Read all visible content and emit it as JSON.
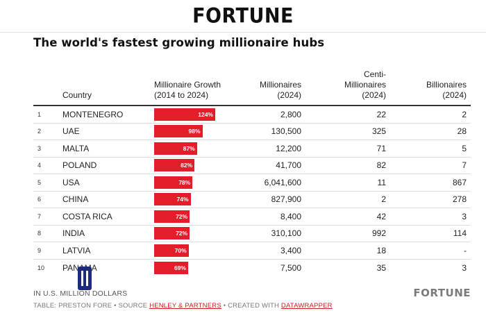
{
  "masthead": {
    "logo": "FORTUNE"
  },
  "title": "The world's fastest growing millionaire hubs",
  "headers": {
    "country": "Country",
    "growth": "Millionaire Growth (2014 to 2024)",
    "millionaires": "Millionaires (2024)",
    "centi": "Centi-Millionaires (2024)",
    "billionaires": "Billionaires (2024)"
  },
  "rows": [
    {
      "rank": "1",
      "country": "MONTENEGRO",
      "growth": "124%",
      "growth_value": 124,
      "millionaires": "2,800",
      "centi": "22",
      "billionaires": "2"
    },
    {
      "rank": "2",
      "country": "UAE",
      "growth": "98%",
      "growth_value": 98,
      "millionaires": "130,500",
      "centi": "325",
      "billionaires": "28"
    },
    {
      "rank": "3",
      "country": "MALTA",
      "growth": "87%",
      "growth_value": 87,
      "millionaires": "12,200",
      "centi": "71",
      "billionaires": "5"
    },
    {
      "rank": "4",
      "country": "POLAND",
      "growth": "82%",
      "growth_value": 82,
      "millionaires": "41,700",
      "centi": "82",
      "billionaires": "7"
    },
    {
      "rank": "5",
      "country": "USA",
      "growth": "78%",
      "growth_value": 78,
      "millionaires": "6,041,600",
      "centi": "11",
      "billionaires": "867"
    },
    {
      "rank": "6",
      "country": "CHINA",
      "growth": "74%",
      "growth_value": 74,
      "millionaires": "827,900",
      "centi": "2",
      "billionaires": "278"
    },
    {
      "rank": "7",
      "country": "COSTA RICA",
      "growth": "72%",
      "growth_value": 72,
      "millionaires": "8,400",
      "centi": "42",
      "billionaires": "3"
    },
    {
      "rank": "8",
      "country": "INDIA",
      "growth": "72%",
      "growth_value": 72,
      "millionaires": "310,100",
      "centi": "992",
      "billionaires": "114"
    },
    {
      "rank": "9",
      "country": "LATVIA",
      "growth": "70%",
      "growth_value": 70,
      "millionaires": "3,400",
      "centi": "18",
      "billionaires": "-"
    },
    {
      "rank": "10",
      "country": "PANAMA",
      "growth": "69%",
      "growth_value": 69,
      "millionaires": "7,500",
      "centi": "35",
      "billionaires": "3"
    }
  ],
  "footer": {
    "units_note": "IN U.S. MILLION DOLLARS",
    "credit_prefix": "TABLE: PRESTON FORE • SOURCE ",
    "source_link": "HENLEY & PARTNERS",
    "credit_mid": " • CREATED WITH ",
    "tool_link": "DATAWRAPPER",
    "logo": "FORTUNE"
  },
  "colors": {
    "bar": "#e31d2a",
    "link": "#c81e2a"
  }
}
